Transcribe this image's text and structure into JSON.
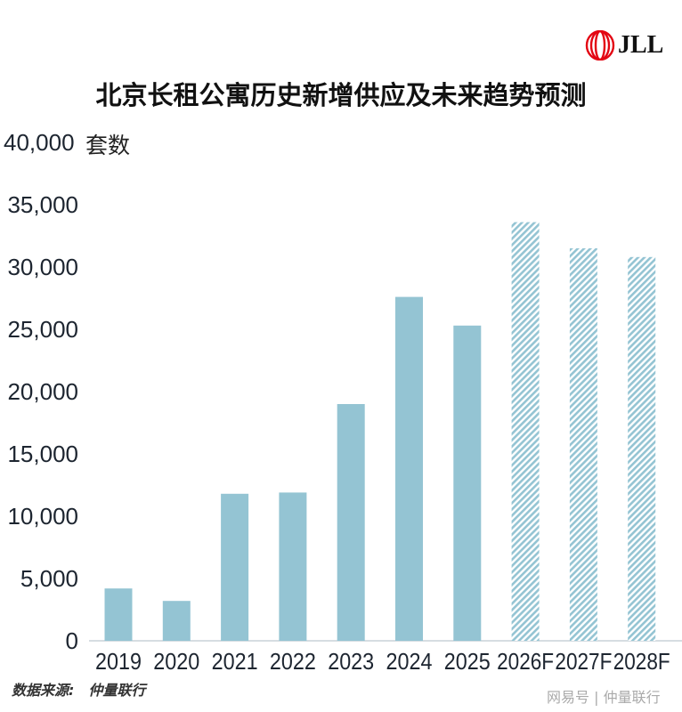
{
  "logo": {
    "text": "JLL",
    "color": "#e30613"
  },
  "chart_data": {
    "type": "bar",
    "title": "北京长租公寓历史新增供应及未来趋势预测",
    "ylabel": "套数",
    "categories": [
      "2019",
      "2020",
      "2021",
      "2022",
      "2023",
      "2024",
      "2025",
      "2026F",
      "2027F",
      "2028F"
    ],
    "values": [
      4200,
      3200,
      11800,
      11900,
      19000,
      27600,
      25300,
      33600,
      31500,
      30800
    ],
    "forecast": [
      false,
      false,
      false,
      false,
      false,
      false,
      false,
      true,
      true,
      true
    ],
    "ylim": [
      0,
      40000
    ],
    "yticks": [
      "0",
      "5,000",
      "10,000",
      "15,000",
      "20,000",
      "25,000",
      "30,000",
      "35,000",
      "40,000"
    ],
    "grid": false,
    "colors": {
      "bar": "#94c4d3",
      "forecast_hatch": "#94c4d3"
    }
  },
  "source": {
    "label": "数据来源:",
    "value": "仲量联行"
  },
  "watermark": "网易号 | 仲量联行"
}
